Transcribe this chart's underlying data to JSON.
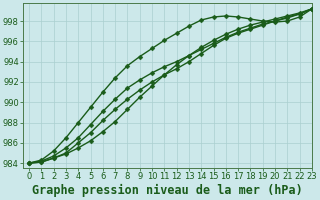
{
  "title": "Graphe pression niveau de la mer (hPa)",
  "xlim": [
    -0.5,
    23
  ],
  "ylim": [
    983.5,
    999.8
  ],
  "xticks": [
    0,
    1,
    2,
    3,
    4,
    5,
    6,
    7,
    8,
    9,
    10,
    11,
    12,
    13,
    14,
    15,
    16,
    17,
    18,
    19,
    20,
    21,
    22,
    23
  ],
  "yticks": [
    984,
    986,
    988,
    990,
    992,
    994,
    996,
    998
  ],
  "background_color": "#cce8ea",
  "grid_color": "#aacfcf",
  "line_color": "#1a5c1a",
  "lines": [
    [
      984.0,
      984.1,
      984.5,
      984.9,
      985.5,
      986.2,
      987.1,
      988.1,
      989.3,
      990.5,
      991.6,
      992.7,
      993.7,
      994.6,
      995.4,
      996.1,
      996.7,
      997.2,
      997.6,
      997.9,
      998.2,
      998.5,
      998.8,
      999.2
    ],
    [
      984.0,
      984.1,
      984.5,
      985.0,
      986.0,
      987.0,
      988.2,
      989.3,
      990.3,
      991.2,
      992.0,
      992.7,
      993.3,
      994.0,
      994.8,
      995.6,
      996.3,
      996.8,
      997.2,
      997.6,
      998.0,
      998.4,
      998.7,
      999.2
    ],
    [
      984.0,
      984.2,
      984.7,
      985.5,
      986.5,
      987.8,
      989.1,
      990.3,
      991.4,
      992.2,
      992.9,
      993.5,
      994.0,
      994.6,
      995.2,
      995.8,
      996.4,
      996.9,
      997.3,
      997.7,
      998.0,
      998.3,
      998.7,
      999.2
    ],
    [
      984.0,
      984.3,
      985.2,
      986.5,
      988.0,
      989.5,
      991.0,
      992.4,
      993.6,
      994.5,
      995.3,
      996.1,
      996.8,
      997.5,
      998.1,
      998.4,
      998.5,
      998.4,
      998.2,
      998.0,
      997.9,
      998.0,
      998.4,
      999.2
    ]
  ],
  "marker": "D",
  "marker_size": 2.5,
  "linewidth": 1.0,
  "title_fontsize": 8.5,
  "tick_fontsize": 6.0
}
